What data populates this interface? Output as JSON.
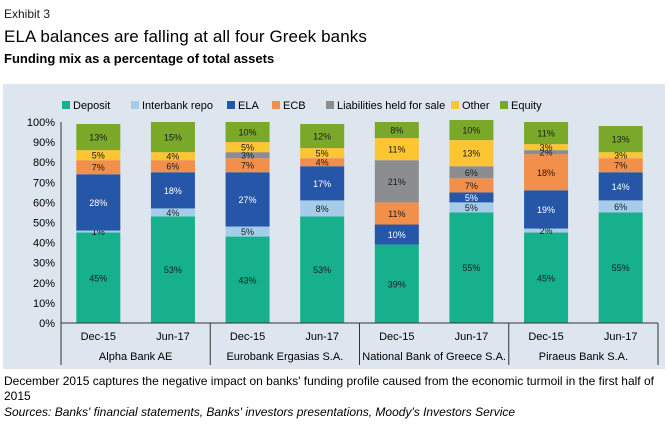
{
  "header": {
    "exhibit": "Exhibit 3",
    "title": "ELA balances are falling at all four Greek banks",
    "subtitle": "Funding mix as a percentage of total assets"
  },
  "chart_data": {
    "type": "bar",
    "stacked": true,
    "title": "Funding mix as a percentage of total assets",
    "xlabel": "",
    "ylabel": "",
    "ylim": [
      0,
      100
    ],
    "yticks": [
      "0%",
      "10%",
      "20%",
      "30%",
      "40%",
      "50%",
      "60%",
      "70%",
      "80%",
      "90%",
      "100%"
    ],
    "legend_position": "top",
    "categories": [
      "Dec-15",
      "Jun-17",
      "Dec-15",
      "Jun-17",
      "Dec-15",
      "Jun-17",
      "Dec-15",
      "Jun-17"
    ],
    "groups": [
      "Alpha Bank AE",
      "Eurobank Ergasias S.A.",
      "National Bank of Greece S.A.",
      "Piraeus Bank S.A."
    ],
    "series": [
      {
        "name": "Deposit",
        "color": "#17b08c",
        "values": [
          45,
          53,
          43,
          53,
          39,
          55,
          45,
          55
        ],
        "labels": [
          "45%",
          "53%",
          "43%",
          "53%",
          "39%",
          "55%",
          "45%",
          "55%"
        ]
      },
      {
        "name": "Interbank repo",
        "color": "#a5cdea",
        "values": [
          1,
          4,
          5,
          8,
          0,
          5,
          2,
          6
        ],
        "labels": [
          "1%",
          "4%",
          "5%",
          "8%",
          "",
          "5%",
          "2%",
          "6%"
        ]
      },
      {
        "name": "ELA",
        "color": "#2656a8",
        "values": [
          28,
          18,
          27,
          17,
          10,
          5,
          19,
          14
        ],
        "labels": [
          "28%",
          "18%",
          "27%",
          "17%",
          "10%",
          "5%",
          "19%",
          "14%"
        ]
      },
      {
        "name": "ECB",
        "color": "#f28f4b",
        "values": [
          7,
          6,
          7,
          4,
          11,
          7,
          18,
          7
        ],
        "labels": [
          "7%",
          "6%",
          "7%",
          "4%",
          "11%",
          "7%",
          "18%",
          "7%"
        ]
      },
      {
        "name": "Liabilities held for sale",
        "color": "#8c8d91",
        "values": [
          0,
          0,
          3,
          0,
          21,
          6,
          2,
          0
        ],
        "labels": [
          "",
          "",
          "3%",
          "",
          "21%",
          "6%",
          "2%",
          ""
        ]
      },
      {
        "name": "Other",
        "color": "#fcc532",
        "values": [
          5,
          4,
          5,
          5,
          11,
          13,
          3,
          3
        ],
        "labels": [
          "5%",
          "4%",
          "5%",
          "5%",
          "11%",
          "13%",
          "3%",
          "3%"
        ]
      },
      {
        "name": "Equity",
        "color": "#7aa92a",
        "values": [
          13,
          15,
          10,
          12,
          8,
          10,
          11,
          13
        ],
        "labels": [
          "13%",
          "15%",
          "10%",
          "12%",
          "8%",
          "10%",
          "11%",
          "13%"
        ]
      }
    ]
  },
  "footer": {
    "note": "December 2015 captures the negative impact on banks' funding profile caused from the economic turmoil in the first half of 2015",
    "sources": "Sources: Banks' financial statements, Banks' investors presentations, Moody's Investors Service"
  }
}
